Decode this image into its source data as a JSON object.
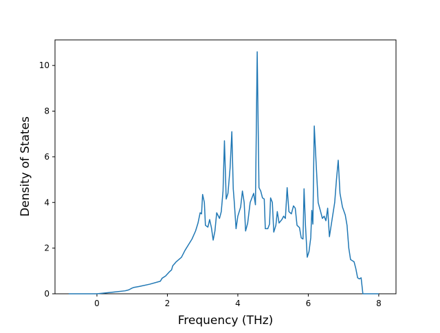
{
  "chart_data": {
    "type": "line",
    "xlabel": "Frequency (THz)",
    "ylabel": "Density of States",
    "x": [
      -0.8,
      0,
      0.2,
      0.5,
      0.8,
      0.9,
      1.0,
      1.05,
      1.2,
      1.5,
      1.8,
      1.85,
      1.95,
      2.05,
      2.12,
      2.15,
      2.25,
      2.4,
      2.5,
      2.6,
      2.7,
      2.8,
      2.87,
      2.93,
      2.97,
      3.0,
      3.05,
      3.08,
      3.15,
      3.2,
      3.25,
      3.3,
      3.35,
      3.4,
      3.48,
      3.53,
      3.58,
      3.62,
      3.67,
      3.72,
      3.78,
      3.83,
      3.87,
      3.9,
      3.95,
      4.0,
      4.08,
      4.13,
      4.18,
      4.22,
      4.28,
      4.35,
      4.45,
      4.5,
      4.55,
      4.6,
      4.65,
      4.7,
      4.75,
      4.78,
      4.85,
      4.9,
      4.93,
      4.98,
      5.02,
      5.08,
      5.12,
      5.17,
      5.25,
      5.3,
      5.35,
      5.4,
      5.45,
      5.52,
      5.58,
      5.63,
      5.68,
      5.75,
      5.8,
      5.85,
      5.88,
      5.92,
      5.97,
      6.02,
      6.07,
      6.1,
      6.13,
      6.17,
      6.22,
      6.28,
      6.35,
      6.4,
      6.45,
      6.5,
      6.55,
      6.6,
      6.67,
      6.75,
      6.8,
      6.85,
      6.9,
      6.97,
      7.05,
      7.1,
      7.15,
      7.2,
      7.3,
      7.35,
      7.4,
      7.45,
      7.5,
      7.55,
      8.0
    ],
    "series": [
      {
        "color": "#1f77b4",
        "values": [
          0,
          0,
          0.03,
          0.08,
          0.13,
          0.17,
          0.25,
          0.28,
          0.32,
          0.42,
          0.55,
          0.68,
          0.78,
          0.95,
          1.05,
          1.22,
          1.4,
          1.6,
          1.9,
          2.15,
          2.4,
          2.75,
          3.1,
          3.55,
          3.5,
          4.35,
          4.0,
          3.0,
          2.92,
          3.25,
          2.9,
          2.35,
          2.75,
          3.55,
          3.3,
          3.6,
          4.5,
          6.7,
          4.15,
          4.4,
          5.5,
          7.1,
          4.6,
          4.0,
          2.85,
          3.4,
          3.8,
          4.5,
          4.0,
          2.75,
          3.1,
          4.0,
          4.4,
          3.9,
          10.6,
          4.65,
          4.5,
          4.2,
          4.15,
          2.85,
          2.85,
          3.05,
          4.2,
          4.0,
          2.7,
          3.0,
          3.6,
          3.1,
          3.25,
          3.4,
          3.3,
          4.65,
          3.6,
          3.5,
          3.85,
          3.75,
          3.0,
          2.9,
          2.45,
          2.4,
          4.6,
          3.0,
          1.6,
          1.85,
          2.45,
          3.65,
          3.05,
          7.35,
          5.8,
          4.0,
          3.6,
          3.3,
          3.4,
          3.2,
          3.75,
          2.5,
          3.2,
          4.0,
          5.0,
          5.85,
          4.4,
          3.8,
          3.45,
          3.0,
          2.0,
          1.5,
          1.4,
          1.1,
          0.7,
          0.65,
          0.7,
          0,
          0
        ]
      }
    ],
    "xlim": [
      -1.19,
      8.49
    ],
    "ylim": [
      0,
      11.12
    ],
    "xticks": [
      0,
      2,
      4,
      6,
      8
    ],
    "yticks": [
      0,
      2,
      4,
      6,
      8,
      10
    ]
  }
}
